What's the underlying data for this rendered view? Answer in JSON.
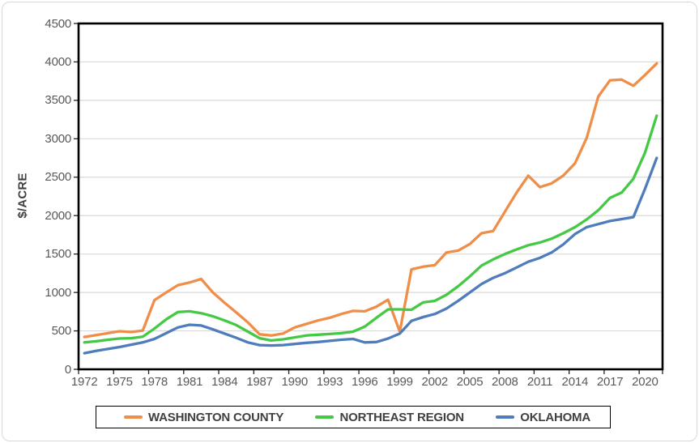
{
  "figure": {
    "background_color": "#FFFFFF",
    "outer_border_color": "#D8D8D8",
    "plot_border_color": "#000000",
    "gridline_color": "#D9D9D9",
    "tick_label_color": "#595959",
    "text_color": "#404040"
  },
  "legend": {
    "entries": [
      {
        "label": "WASHINGTON COUNTY",
        "color": "#EF8E49"
      },
      {
        "label": "NORTHEAST REGION",
        "color": "#45C945"
      },
      {
        "label": "OKLAHOMA",
        "color": "#4F7CBB"
      }
    ]
  },
  "chart_data": {
    "type": "line",
    "title": "",
    "xlabel": "",
    "ylabel": "$/ACRE",
    "ylim": [
      0,
      4500
    ],
    "y_tick_step": 500,
    "y_tick_labels": [
      "0",
      "500",
      "1000",
      "1500",
      "2000",
      "2500",
      "3000",
      "3500",
      "4000",
      "4500"
    ],
    "x_labeled_years": [
      1972,
      1975,
      1978,
      1981,
      1984,
      1987,
      1990,
      1993,
      1996,
      1999,
      2002,
      2005,
      2008,
      2011,
      2014,
      2017,
      2020
    ],
    "x_label_interval": 3,
    "grid": "horizontal",
    "legend_position": "bottom",
    "x": [
      1972,
      1973,
      1974,
      1975,
      1976,
      1977,
      1978,
      1979,
      1980,
      1981,
      1982,
      1983,
      1984,
      1985,
      1986,
      1987,
      1988,
      1989,
      1990,
      1991,
      1992,
      1993,
      1994,
      1995,
      1996,
      1997,
      1998,
      1999,
      2000,
      2001,
      2002,
      2003,
      2004,
      2005,
      2006,
      2007,
      2008,
      2009,
      2010,
      2011,
      2012,
      2013,
      2014,
      2015,
      2016,
      2017,
      2018,
      2019,
      2020,
      2021
    ],
    "series": [
      {
        "name": "WASHINGTON COUNTY",
        "color": "#EF8E49",
        "values": [
          420,
          445,
          470,
          495,
          485,
          505,
          900,
          1000,
          1095,
          1130,
          1175,
          1000,
          865,
          740,
          610,
          455,
          440,
          465,
          545,
          590,
          635,
          670,
          720,
          760,
          755,
          815,
          905,
          490,
          1300,
          1335,
          1355,
          1520,
          1545,
          1630,
          1770,
          1800,
          2050,
          2300,
          2520,
          2370,
          2420,
          2520,
          2680,
          3010,
          3550,
          3760,
          3770,
          3690,
          3830,
          3980
        ]
      },
      {
        "name": "NORTHEAST REGION",
        "color": "#45C945",
        "values": [
          350,
          365,
          385,
          400,
          405,
          425,
          530,
          650,
          745,
          755,
          730,
          690,
          635,
          575,
          490,
          405,
          375,
          390,
          415,
          440,
          450,
          460,
          470,
          490,
          555,
          670,
          780,
          780,
          775,
          870,
          890,
          970,
          1080,
          1210,
          1350,
          1430,
          1500,
          1560,
          1615,
          1650,
          1700,
          1770,
          1850,
          1950,
          2070,
          2230,
          2300,
          2480,
          2820,
          3300
        ]
      },
      {
        "name": "OKLAHOMA",
        "color": "#4F7CBB",
        "values": [
          210,
          240,
          265,
          290,
          320,
          350,
          395,
          470,
          545,
          580,
          570,
          520,
          465,
          410,
          350,
          315,
          310,
          315,
          330,
          345,
          355,
          370,
          385,
          395,
          350,
          355,
          400,
          465,
          630,
          680,
          720,
          790,
          890,
          1000,
          1110,
          1190,
          1250,
          1325,
          1400,
          1450,
          1520,
          1625,
          1760,
          1850,
          1890,
          1930,
          1955,
          1980,
          2350,
          2750
        ]
      }
    ]
  }
}
